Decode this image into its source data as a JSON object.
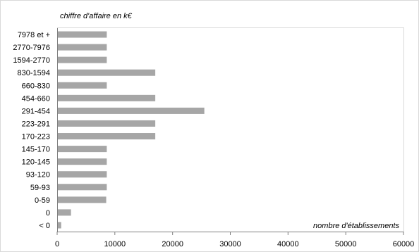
{
  "chart_data": {
    "type": "bar",
    "orientation": "horizontal",
    "title": "",
    "xlabel": "nombre d'établissements",
    "ylabel": "chiffre d'affaire en k€",
    "categories": [
      "< 0",
      "0",
      "0-59",
      "59-93",
      "93-120",
      "120-145",
      "145-170",
      "170-223",
      "223-291",
      "291-454",
      "454-660",
      "660-830",
      "830-1594",
      "1594-2770",
      "2770-7976",
      "7978 et +"
    ],
    "values": [
      700,
      2400,
      8500,
      8600,
      8600,
      8600,
      8600,
      17000,
      17000,
      25500,
      17000,
      8600,
      17000,
      8600,
      8600,
      8600
    ],
    "xlim": [
      0,
      60000
    ],
    "xticks": [
      "0",
      "10000",
      "20000",
      "30000",
      "40000",
      "50000",
      "60000"
    ],
    "grid": false,
    "legend": "none",
    "colors": {
      "bar": "#a6a6a6",
      "axis": "#7f7f7f",
      "border": "#d9d9d9"
    }
  }
}
